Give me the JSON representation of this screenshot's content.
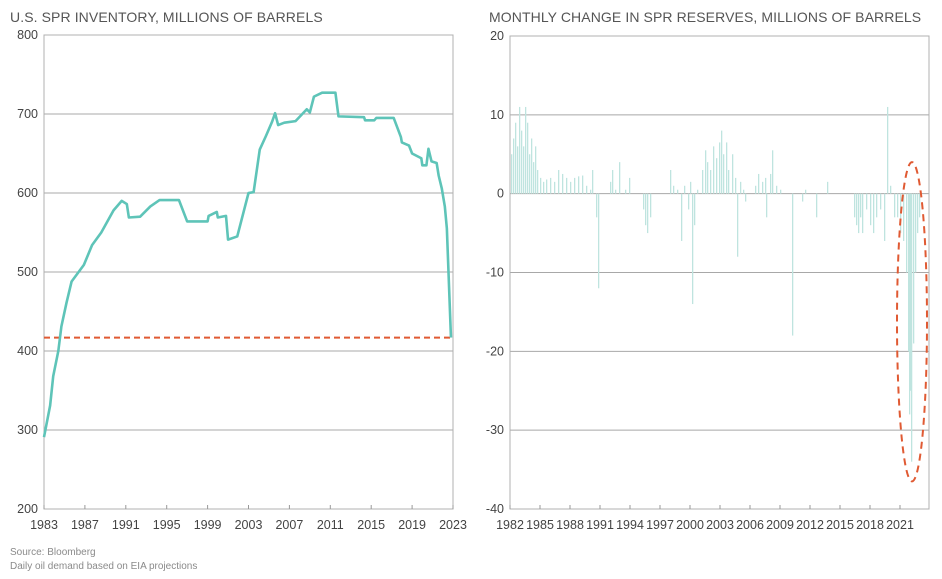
{
  "chart_data": [
    {
      "type": "line",
      "title": "U.S. SPR INVENTORY, MILLIONS OF BARRELS",
      "xlabel": "",
      "ylabel": "",
      "xlim": [
        1983,
        2023
      ],
      "ylim": [
        200,
        800
      ],
      "x_ticks": [
        "1983",
        "1987",
        "1991",
        "1995",
        "1999",
        "2003",
        "2007",
        "2011",
        "2015",
        "2019",
        "2023"
      ],
      "y_ticks": [
        "200",
        "300",
        "400",
        "500",
        "600",
        "700",
        "800"
      ],
      "grid": true,
      "colors": {
        "line": "#5ec4b8",
        "reference": "#e05a33"
      },
      "series": [
        {
          "name": "SPR inventory",
          "points": [
            [
              1983.0,
              291
            ],
            [
              1983.6,
              331
            ],
            [
              1983.9,
              368
            ],
            [
              1984.4,
              400
            ],
            [
              1984.7,
              431
            ],
            [
              1985.2,
              461
            ],
            [
              1985.7,
              488
            ],
            [
              1986.9,
              509
            ],
            [
              1987.7,
              534
            ],
            [
              1988.6,
              550
            ],
            [
              1989.8,
              578
            ],
            [
              1990.6,
              590
            ],
            [
              1991.1,
              586
            ],
            [
              1991.3,
              569
            ],
            [
              1992.4,
              570
            ],
            [
              1993.4,
              583
            ],
            [
              1994.3,
              591
            ],
            [
              1996.2,
              591
            ],
            [
              1997.0,
              564
            ],
            [
              1999.0,
              564
            ],
            [
              1999.1,
              571
            ],
            [
              1999.9,
              576
            ],
            [
              2000.0,
              569
            ],
            [
              2000.8,
              571
            ],
            [
              2001.0,
              541
            ],
            [
              2001.9,
              545
            ],
            [
              2003.0,
              600
            ],
            [
              2003.5,
              601
            ],
            [
              2004.1,
              655
            ],
            [
              2004.7,
              672
            ],
            [
              2005.3,
              690
            ],
            [
              2005.6,
              701
            ],
            [
              2005.9,
              686
            ],
            [
              2006.5,
              689
            ],
            [
              2007.6,
              691
            ],
            [
              2008.7,
              706
            ],
            [
              2009.0,
              702
            ],
            [
              2009.4,
              722
            ],
            [
              2010.2,
              727
            ],
            [
              2011.5,
              727
            ],
            [
              2011.8,
              697
            ],
            [
              2014.3,
              696
            ],
            [
              2014.4,
              692
            ],
            [
              2015.3,
              692
            ],
            [
              2015.5,
              695
            ],
            [
              2017.2,
              695
            ],
            [
              2017.9,
              671
            ],
            [
              2018.0,
              664
            ],
            [
              2018.7,
              660
            ],
            [
              2019.0,
              650
            ],
            [
              2019.9,
              644
            ],
            [
              2020.0,
              635
            ],
            [
              2020.4,
              635
            ],
            [
              2020.6,
              656
            ],
            [
              2020.9,
              640
            ],
            [
              2021.4,
              638
            ],
            [
              2021.6,
              622
            ],
            [
              2021.9,
              606
            ],
            [
              2022.2,
              583
            ],
            [
              2022.4,
              555
            ],
            [
              2022.8,
              417
            ]
          ]
        }
      ],
      "reference_line": {
        "y": 417,
        "x_range": [
          1983,
          2022.8
        ],
        "style": "dashed"
      }
    },
    {
      "type": "bar",
      "title": "MONTHLY CHANGE IN SPR RESERVES, MILLIONS OF BARRELS",
      "xlabel": "",
      "ylabel": "",
      "xlim": [
        1982,
        2023.9
      ],
      "ylim": [
        -40,
        20
      ],
      "x_ticks": [
        "1982",
        "1985",
        "1988",
        "1991",
        "1994",
        "1997",
        "2000",
        "2003",
        "2006",
        "2009",
        "2012",
        "2015",
        "2018",
        "2021"
      ],
      "y_ticks": [
        "-40",
        "-30",
        "-20",
        "-10",
        "0",
        "10",
        "20"
      ],
      "grid": true,
      "colors": {
        "bar": "#bfe4df",
        "annotation": "#e05a33"
      },
      "series": [
        {
          "name": "Monthly change",
          "points": [
            [
              1982.1,
              5
            ],
            [
              1982.3,
              7
            ],
            [
              1982.5,
              9
            ],
            [
              1982.7,
              6
            ],
            [
              1982.9,
              11
            ],
            [
              1983.1,
              8
            ],
            [
              1983.3,
              6
            ],
            [
              1983.5,
              11
            ],
            [
              1983.7,
              9
            ],
            [
              1983.9,
              5
            ],
            [
              1984.1,
              7
            ],
            [
              1984.3,
              4
            ],
            [
              1984.5,
              6
            ],
            [
              1984.7,
              3
            ],
            [
              1985.0,
              2
            ],
            [
              1985.3,
              1.5
            ],
            [
              1985.6,
              1.8
            ],
            [
              1986.0,
              2
            ],
            [
              1986.4,
              1.5
            ],
            [
              1986.8,
              3
            ],
            [
              1987.2,
              2.5
            ],
            [
              1987.6,
              2
            ],
            [
              1988.0,
              1.5
            ],
            [
              1988.4,
              2
            ],
            [
              1988.8,
              2.2
            ],
            [
              1989.2,
              2.3
            ],
            [
              1989.6,
              1
            ],
            [
              1990.0,
              0.5
            ],
            [
              1990.2,
              3
            ],
            [
              1990.6,
              -3
            ],
            [
              1990.8,
              -12
            ],
            [
              1992.0,
              1.5
            ],
            [
              1992.2,
              3
            ],
            [
              1992.5,
              0.5
            ],
            [
              1992.9,
              4
            ],
            [
              1993.5,
              0.5
            ],
            [
              1993.9,
              2
            ],
            [
              1995.3,
              -2
            ],
            [
              1995.5,
              -4
            ],
            [
              1995.7,
              -5
            ],
            [
              1996.0,
              -3
            ],
            [
              1998.0,
              3
            ],
            [
              1998.3,
              1
            ],
            [
              1998.7,
              0.5
            ],
            [
              1999.1,
              -6
            ],
            [
              1999.4,
              1
            ],
            [
              1999.8,
              -2
            ],
            [
              2000.0,
              1.5
            ],
            [
              2000.2,
              -14
            ],
            [
              2000.4,
              -4
            ],
            [
              2000.7,
              0.5
            ],
            [
              2001.2,
              3
            ],
            [
              2001.5,
              5.5
            ],
            [
              2001.7,
              4
            ],
            [
              2002.0,
              3
            ],
            [
              2002.3,
              6
            ],
            [
              2002.6,
              4.5
            ],
            [
              2002.9,
              6.5
            ],
            [
              2003.1,
              8
            ],
            [
              2003.3,
              5
            ],
            [
              2003.6,
              6.5
            ],
            [
              2003.8,
              3
            ],
            [
              2004.2,
              5
            ],
            [
              2004.5,
              2
            ],
            [
              2004.7,
              -8
            ],
            [
              2005.0,
              1.5
            ],
            [
              2005.3,
              0.5
            ],
            [
              2005.5,
              -1
            ],
            [
              2006.5,
              1
            ],
            [
              2006.8,
              2.5
            ],
            [
              2007.2,
              1.5
            ],
            [
              2007.5,
              2
            ],
            [
              2007.6,
              -3
            ],
            [
              2008.0,
              2.5
            ],
            [
              2008.2,
              5.5
            ],
            [
              2008.6,
              1
            ],
            [
              2009.0,
              0.5
            ],
            [
              2010.2,
              -18
            ],
            [
              2011.2,
              -1
            ],
            [
              2011.5,
              0.5
            ],
            [
              2012.6,
              -3
            ],
            [
              2013.7,
              1.5
            ],
            [
              2016.4,
              -3
            ],
            [
              2016.6,
              -4
            ],
            [
              2016.8,
              -5
            ],
            [
              2017.0,
              -3
            ],
            [
              2017.2,
              -5
            ],
            [
              2017.6,
              -2
            ],
            [
              2018.0,
              -4
            ],
            [
              2018.3,
              -5
            ],
            [
              2018.6,
              -3
            ],
            [
              2019.0,
              -2
            ],
            [
              2019.4,
              -6
            ],
            [
              2019.7,
              11
            ],
            [
              2020.0,
              1
            ],
            [
              2020.4,
              -3
            ],
            [
              2020.7,
              -3
            ],
            [
              2021.0,
              -5
            ],
            [
              2021.3,
              -6
            ],
            [
              2021.6,
              -10
            ],
            [
              2021.8,
              -20
            ],
            [
              2021.9,
              -28
            ],
            [
              2022.0,
              -25
            ],
            [
              2022.1,
              -34
            ],
            [
              2022.3,
              -19
            ],
            [
              2022.5,
              -10
            ],
            [
              2022.7,
              -5
            ],
            [
              2022.9,
              -3
            ]
          ]
        }
      ],
      "annotation": {
        "shape": "dashed-ellipse",
        "x_range": [
          2020.5,
          2023.9
        ],
        "y_range": [
          -36.5,
          4
        ]
      }
    }
  ],
  "footer": {
    "source": "Source: Bloomberg",
    "note": "Daily oil demand based on EIA projections"
  }
}
